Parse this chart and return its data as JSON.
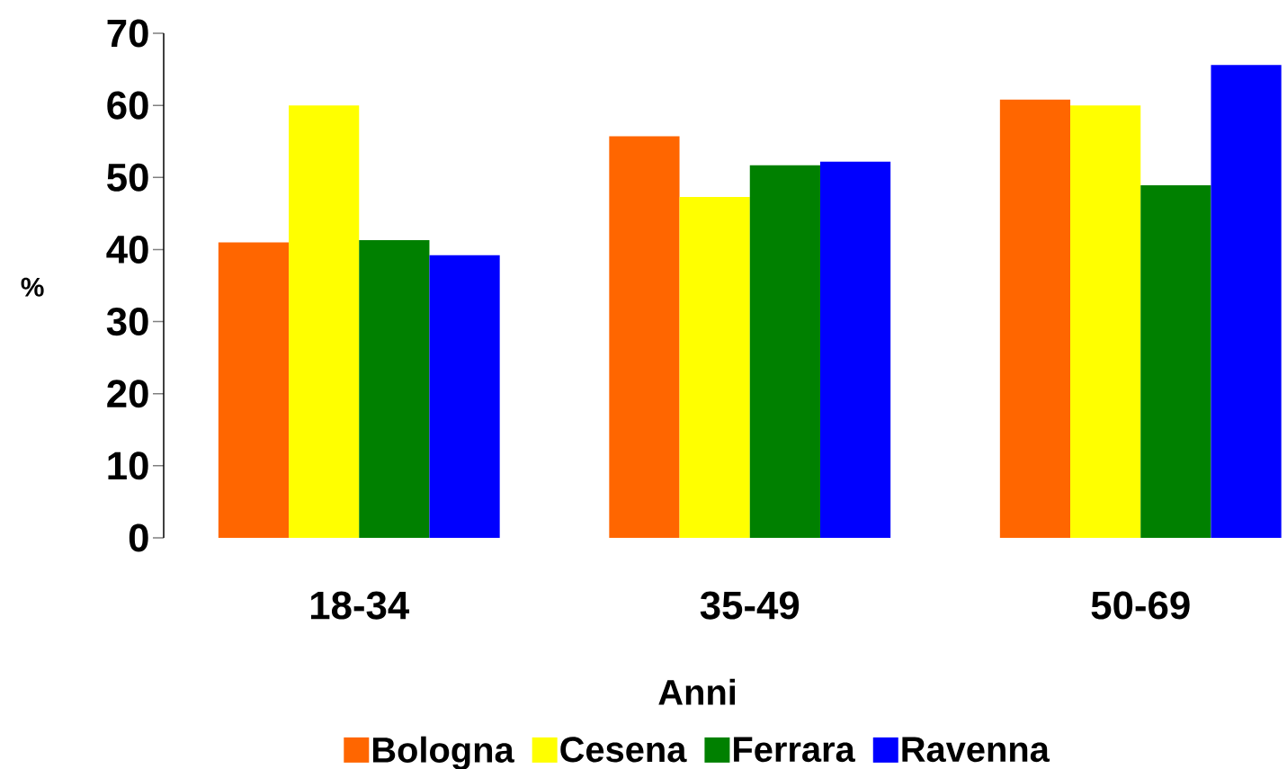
{
  "chart_data": {
    "type": "bar",
    "xlabel": "Anni",
    "ylabel": "%",
    "categories": [
      "18-34",
      "35-49",
      "50-69"
    ],
    "series": [
      {
        "name": "Bologna",
        "color": "#ff6600",
        "values": [
          41.0,
          55.7,
          60.8
        ]
      },
      {
        "name": "Cesena",
        "color": "#ffff00",
        "values": [
          60.0,
          47.3,
          60.0
        ]
      },
      {
        "name": "Ferrara",
        "color": "#008000",
        "values": [
          41.3,
          51.7,
          48.9
        ]
      },
      {
        "name": "Ravenna",
        "color": "#0000ff",
        "values": [
          39.2,
          52.2,
          65.6
        ]
      }
    ],
    "ylim": [
      0,
      70
    ],
    "yticks": [
      0,
      10,
      20,
      30,
      40,
      50,
      60,
      70
    ],
    "legend": "bottom"
  }
}
